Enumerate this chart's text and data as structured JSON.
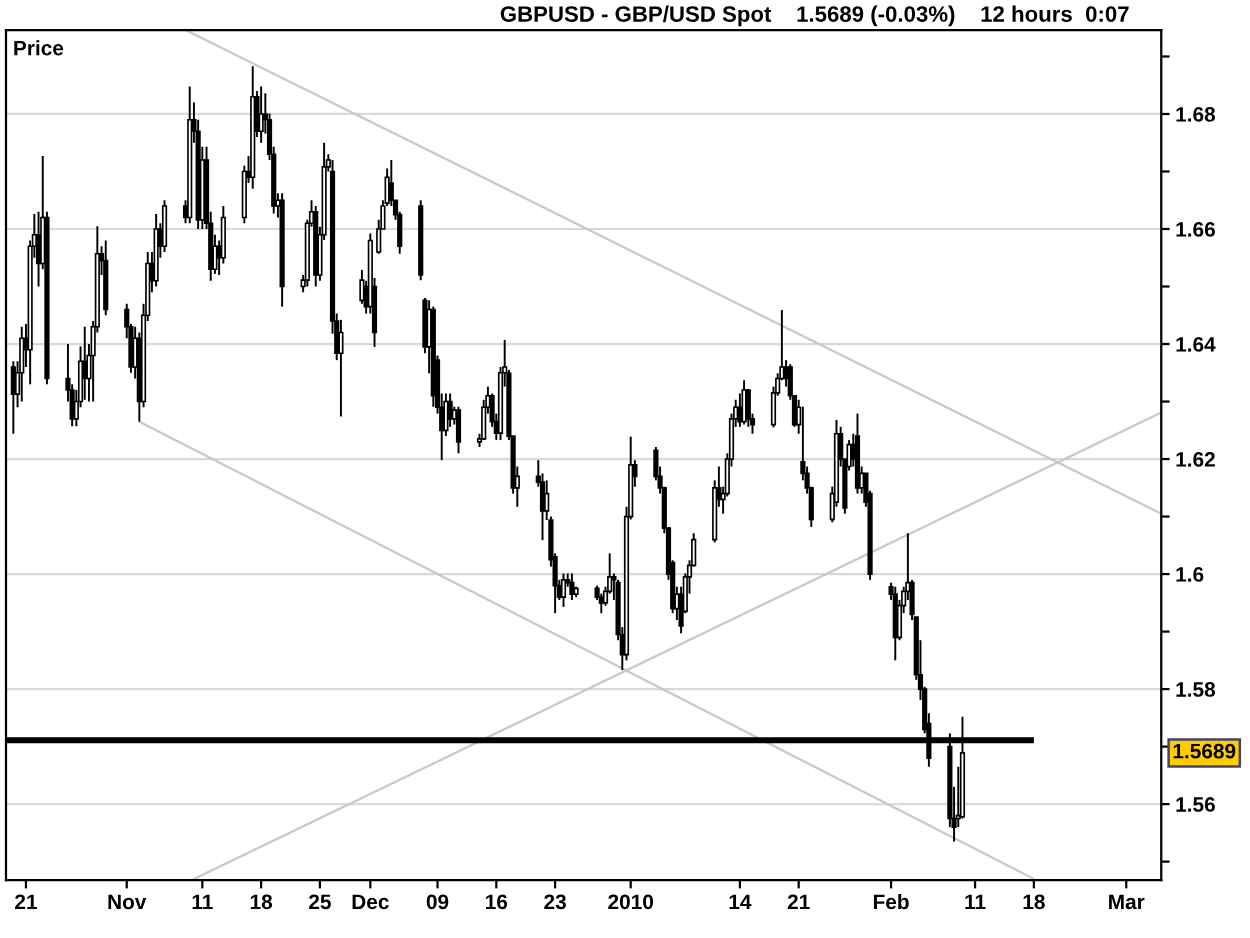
{
  "chart_data": {
    "type": "candlestick",
    "title": "GBPUSD - GBP/USD Spot    1.5689 (-0.03%)    12 hours  0:07",
    "ylabel": "Price",
    "color": "#000000",
    "x": [
      "2009-10-19T12:00",
      "2009-10-20T00:00",
      "2009-10-20T12:00",
      "2009-10-21T00:00",
      "2009-10-21T12:00",
      "2009-10-22T00:00",
      "2009-10-22T12:00",
      "2009-10-23T00:00",
      "2009-10-23T12:00",
      "2009-10-26T00:00",
      "2009-10-26T12:00",
      "2009-10-27T00:00",
      "2009-10-27T12:00",
      "2009-10-28T00:00",
      "2009-10-28T12:00",
      "2009-10-29T00:00",
      "2009-10-29T12:00",
      "2009-10-30T00:00",
      "2009-10-30T12:00",
      "2009-11-02T00:00",
      "2009-11-02T12:00",
      "2009-11-03T00:00",
      "2009-11-03T12:00",
      "2009-11-04T00:00",
      "2009-11-04T12:00",
      "2009-11-05T00:00",
      "2009-11-05T12:00",
      "2009-11-06T00:00",
      "2009-11-06T12:00",
      "2009-11-09T00:00",
      "2009-11-09T12:00",
      "2009-11-10T00:00",
      "2009-11-10T12:00",
      "2009-11-11T00:00",
      "2009-11-11T12:00",
      "2009-11-12T00:00",
      "2009-11-12T12:00",
      "2009-11-13T00:00",
      "2009-11-13T12:00",
      "2009-11-16T00:00",
      "2009-11-16T12:00",
      "2009-11-17T00:00",
      "2009-11-17T12:00",
      "2009-11-18T00:00",
      "2009-11-18T12:00",
      "2009-11-19T00:00",
      "2009-11-19T12:00",
      "2009-11-20T00:00",
      "2009-11-20T12:00",
      "2009-11-23T00:00",
      "2009-11-23T12:00",
      "2009-11-24T00:00",
      "2009-11-24T12:00",
      "2009-11-25T00:00",
      "2009-11-25T12:00",
      "2009-11-26T00:00",
      "2009-11-26T12:00",
      "2009-11-27T00:00",
      "2009-11-27T12:00",
      "2009-11-30T00:00",
      "2009-11-30T12:00",
      "2009-12-01T00:00",
      "2009-12-01T12:00",
      "2009-12-02T00:00",
      "2009-12-02T12:00",
      "2009-12-03T00:00",
      "2009-12-03T12:00",
      "2009-12-04T00:00",
      "2009-12-04T12:00",
      "2009-12-07T00:00",
      "2009-12-07T12:00",
      "2009-12-08T00:00",
      "2009-12-08T12:00",
      "2009-12-09T00:00",
      "2009-12-09T12:00",
      "2009-12-10T00:00",
      "2009-12-10T12:00",
      "2009-12-11T00:00",
      "2009-12-11T12:00",
      "2009-12-14T00:00",
      "2009-12-14T12:00",
      "2009-12-15T00:00",
      "2009-12-15T12:00",
      "2009-12-16T00:00",
      "2009-12-16T12:00",
      "2009-12-17T00:00",
      "2009-12-17T12:00",
      "2009-12-18T00:00",
      "2009-12-18T12:00",
      "2009-12-21T00:00",
      "2009-12-21T12:00",
      "2009-12-22T00:00",
      "2009-12-22T12:00",
      "2009-12-23T00:00",
      "2009-12-23T12:00",
      "2009-12-24T00:00",
      "2009-12-24T12:00",
      "2009-12-25T00:00",
      "2009-12-25T12:00",
      "2009-12-28T00:00",
      "2009-12-28T12:00",
      "2009-12-29T00:00",
      "2009-12-29T12:00",
      "2009-12-30T00:00",
      "2009-12-30T12:00",
      "2009-12-31T00:00",
      "2009-12-31T12:00",
      "2010-01-01T00:00",
      "2010-01-01T12:00",
      "2010-01-04T00:00",
      "2010-01-04T12:00",
      "2010-01-05T00:00",
      "2010-01-05T12:00",
      "2010-01-06T00:00",
      "2010-01-06T12:00",
      "2010-01-07T00:00",
      "2010-01-07T12:00",
      "2010-01-08T00:00",
      "2010-01-08T12:00",
      "2010-01-11T00:00",
      "2010-01-11T12:00",
      "2010-01-12T00:00",
      "2010-01-12T12:00",
      "2010-01-13T00:00",
      "2010-01-13T12:00",
      "2010-01-14T00:00",
      "2010-01-14T12:00",
      "2010-01-15T00:00",
      "2010-01-15T12:00",
      "2010-01-18T00:00",
      "2010-01-18T12:00",
      "2010-01-19T00:00",
      "2010-01-19T12:00",
      "2010-01-20T00:00",
      "2010-01-20T12:00",
      "2010-01-21T00:00",
      "2010-01-21T12:00",
      "2010-01-22T00:00",
      "2010-01-22T12:00",
      "2010-01-25T00:00",
      "2010-01-25T12:00",
      "2010-01-26T00:00",
      "2010-01-26T12:00",
      "2010-01-27T00:00",
      "2010-01-27T12:00",
      "2010-01-28T00:00",
      "2010-01-28T12:00",
      "2010-01-29T00:00",
      "2010-01-29T12:00",
      "2010-02-01T00:00",
      "2010-02-01T12:00",
      "2010-02-02T00:00",
      "2010-02-02T12:00",
      "2010-02-03T00:00",
      "2010-02-03T12:00",
      "2010-02-04T00:00",
      "2010-02-04T12:00",
      "2010-02-05T00:00",
      "2010-02-05T12:00",
      "2010-02-08T00:00",
      "2010-02-08T12:00",
      "2010-02-09T00:00",
      "2010-02-09T12:00"
    ],
    "ohlc": [
      [
        1.636,
        1.637,
        1.6244,
        1.6313
      ],
      [
        1.6313,
        1.637,
        1.629,
        1.635
      ],
      [
        1.635,
        1.643,
        1.63,
        1.641
      ],
      [
        1.641,
        1.6435,
        1.636,
        1.639
      ],
      [
        1.639,
        1.658,
        1.633,
        1.657
      ],
      [
        1.657,
        1.6626,
        1.655,
        1.659
      ],
      [
        1.659,
        1.663,
        1.65,
        1.654
      ],
      [
        1.654,
        1.6727,
        1.653,
        1.662
      ],
      [
        1.662,
        1.663,
        1.633,
        1.634
      ],
      [
        1.634,
        1.64,
        1.63,
        1.632
      ],
      [
        1.632,
        1.633,
        1.6257,
        1.627
      ],
      [
        1.627,
        1.632,
        1.6257,
        1.63
      ],
      [
        1.63,
        1.6396,
        1.629,
        1.637
      ],
      [
        1.637,
        1.643,
        1.6303,
        1.634
      ],
      [
        1.634,
        1.64,
        1.63,
        1.638
      ],
      [
        1.638,
        1.644,
        1.63,
        1.643
      ],
      [
        1.643,
        1.6605,
        1.642,
        1.6557
      ],
      [
        1.6557,
        1.657,
        1.652,
        1.6545
      ],
      [
        1.6545,
        1.658,
        1.645,
        1.646
      ],
      [
        1.646,
        1.647,
        1.641,
        1.643
      ],
      [
        1.643,
        1.6435,
        1.635,
        1.636
      ],
      [
        1.636,
        1.643,
        1.634,
        1.641
      ],
      [
        1.641,
        1.642,
        1.6265,
        1.63
      ],
      [
        1.63,
        1.647,
        1.629,
        1.645
      ],
      [
        1.645,
        1.656,
        1.644,
        1.654
      ],
      [
        1.654,
        1.656,
        1.649,
        1.651
      ],
      [
        1.651,
        1.6626,
        1.65,
        1.66
      ],
      [
        1.66,
        1.661,
        1.655,
        1.657
      ],
      [
        1.657,
        1.665,
        1.656,
        1.664
      ],
      [
        1.664,
        1.665,
        1.661,
        1.662
      ],
      [
        1.662,
        1.6848,
        1.661,
        1.679
      ],
      [
        1.679,
        1.682,
        1.675,
        1.677
      ],
      [
        1.677,
        1.679,
        1.66,
        1.6616
      ],
      [
        1.6616,
        1.6743,
        1.66,
        1.672
      ],
      [
        1.672,
        1.6743,
        1.66,
        1.661
      ],
      [
        1.661,
        1.663,
        1.651,
        1.653
      ],
      [
        1.653,
        1.659,
        1.6522,
        1.657
      ],
      [
        1.657,
        1.658,
        1.652,
        1.655
      ],
      [
        1.655,
        1.664,
        1.654,
        1.662
      ],
      [
        1.662,
        1.671,
        1.661,
        1.67
      ],
      [
        1.67,
        1.6727,
        1.668,
        1.669
      ],
      [
        1.669,
        1.6883,
        1.667,
        1.683
      ],
      [
        1.683,
        1.684,
        1.676,
        1.677
      ],
      [
        1.677,
        1.6848,
        1.675,
        1.68
      ],
      [
        1.68,
        1.6836,
        1.6766,
        1.679
      ],
      [
        1.679,
        1.6801,
        1.672,
        1.673
      ],
      [
        1.673,
        1.6743,
        1.6627,
        1.664
      ],
      [
        1.664,
        1.6662,
        1.662,
        1.665
      ],
      [
        1.665,
        1.6662,
        1.6465,
        1.65
      ],
      [
        1.65,
        1.652,
        1.649,
        1.6511
      ],
      [
        1.6511,
        1.6616,
        1.65,
        1.661
      ],
      [
        1.661,
        1.665,
        1.6604,
        1.663
      ],
      [
        1.663,
        1.664,
        1.65,
        1.652
      ],
      [
        1.652,
        1.6604,
        1.651,
        1.659
      ],
      [
        1.659,
        1.675,
        1.6581,
        1.6708
      ],
      [
        1.6708,
        1.673,
        1.67,
        1.672
      ],
      [
        1.67,
        1.672,
        1.6418,
        1.644
      ],
      [
        1.644,
        1.6453,
        1.6372,
        1.6384
      ],
      [
        1.6384,
        1.6442,
        1.6274,
        1.642
      ],
      [
        1.6476,
        1.6529,
        1.647,
        1.6511
      ],
      [
        1.65,
        1.651,
        1.6453,
        1.6465
      ],
      [
        1.6465,
        1.6592,
        1.6453,
        1.658
      ],
      [
        1.65,
        1.6515,
        1.6395,
        1.642
      ],
      [
        1.656,
        1.6616,
        1.6557,
        1.66
      ],
      [
        1.66,
        1.665,
        1.66,
        1.664
      ],
      [
        1.6645,
        1.6705,
        1.664,
        1.669
      ],
      [
        1.668,
        1.672,
        1.664,
        1.665
      ],
      [
        1.665,
        1.665,
        1.6616,
        1.6625
      ],
      [
        1.6625,
        1.663,
        1.6557,
        1.657
      ],
      [
        1.664,
        1.665,
        1.6511,
        1.652
      ],
      [
        1.6476,
        1.648,
        1.6384,
        1.6395
      ],
      [
        1.6395,
        1.6476,
        1.6349,
        1.646
      ],
      [
        1.646,
        1.6465,
        1.6291,
        1.631
      ],
      [
        1.6372,
        1.638,
        1.6279,
        1.629
      ],
      [
        1.629,
        1.6314,
        1.6198,
        1.625
      ],
      [
        1.625,
        1.6314,
        1.624,
        1.63
      ],
      [
        1.63,
        1.6314,
        1.6256,
        1.627
      ],
      [
        1.627,
        1.6291,
        1.626,
        1.6285
      ],
      [
        1.6285,
        1.6291,
        1.621,
        1.623
      ],
      [
        1.623,
        1.6244,
        1.6221,
        1.6235
      ],
      [
        1.6235,
        1.6303,
        1.6233,
        1.629
      ],
      [
        1.629,
        1.6326,
        1.6279,
        1.631
      ],
      [
        1.631,
        1.6314,
        1.6256,
        1.6265
      ],
      [
        1.6265,
        1.6279,
        1.6233,
        1.6245
      ],
      [
        1.6245,
        1.636,
        1.6233,
        1.635
      ],
      [
        1.635,
        1.6407,
        1.6326,
        1.636
      ],
      [
        1.6349,
        1.6355,
        1.6233,
        1.624
      ],
      [
        1.624,
        1.624,
        1.614,
        1.615
      ],
      [
        1.615,
        1.6187,
        1.6117,
        1.617
      ],
      [
        1.617,
        1.6198,
        1.6152,
        1.616
      ],
      [
        1.616,
        1.6175,
        1.6059,
        1.611
      ],
      [
        1.611,
        1.6163,
        1.6094,
        1.614
      ],
      [
        1.6094,
        1.61,
        1.6013,
        1.6025
      ],
      [
        1.603,
        1.6036,
        1.5932,
        1.598
      ],
      [
        1.598,
        1.599,
        1.5955,
        1.596
      ],
      [
        1.596,
        1.6001,
        1.5943,
        1.599
      ],
      [
        1.599,
        1.6001,
        1.5978,
        1.5985
      ],
      [
        1.5985,
        1.6001,
        1.5955,
        1.5965
      ],
      [
        1.5965,
        1.5978,
        1.596,
        1.5975
      ],
      [
        1.5975,
        1.598,
        1.5955,
        1.596
      ],
      [
        1.596,
        1.5966,
        1.5932,
        1.595
      ],
      [
        1.595,
        1.5978,
        1.5945,
        1.597
      ],
      [
        1.597,
        1.6036,
        1.5966,
        1.5995
      ],
      [
        1.5995,
        1.6001,
        1.5955,
        1.599
      ],
      [
        1.5985,
        1.599,
        1.5885,
        1.5895
      ],
      [
        1.5895,
        1.5908,
        1.5833,
        1.586
      ],
      [
        1.586,
        1.6117,
        1.585,
        1.61
      ],
      [
        1.61,
        1.6239,
        1.6095,
        1.619
      ],
      [
        1.619,
        1.6198,
        1.6152,
        1.617
      ],
      [
        1.6215,
        1.6221,
        1.6163,
        1.617
      ],
      [
        1.617,
        1.6187,
        1.614,
        1.615
      ],
      [
        1.615,
        1.6152,
        1.6071,
        1.608
      ],
      [
        1.608,
        1.6082,
        1.599,
        1.6
      ],
      [
        1.602,
        1.6024,
        1.5932,
        1.594
      ],
      [
        1.594,
        1.5978,
        1.592,
        1.5965
      ],
      [
        1.5965,
        1.5978,
        1.5897,
        1.591
      ],
      [
        1.5935,
        1.6001,
        1.5932,
        1.5995
      ],
      [
        1.5995,
        1.6024,
        1.5966,
        1.6015
      ],
      [
        1.6015,
        1.6071,
        1.6013,
        1.606
      ],
      [
        1.606,
        1.6163,
        1.6055,
        1.615
      ],
      [
        1.615,
        1.6187,
        1.6117,
        1.613
      ],
      [
        1.613,
        1.6152,
        1.6105,
        1.614
      ],
      [
        1.614,
        1.621,
        1.6135,
        1.62
      ],
      [
        1.62,
        1.6279,
        1.6187,
        1.627
      ],
      [
        1.627,
        1.6303,
        1.6256,
        1.629
      ],
      [
        1.629,
        1.6314,
        1.6256,
        1.6265
      ],
      [
        1.6265,
        1.6337,
        1.626,
        1.632
      ],
      [
        1.632,
        1.6322,
        1.6256,
        1.627
      ],
      [
        1.627,
        1.6279,
        1.6244,
        1.626
      ],
      [
        1.626,
        1.6326,
        1.6255,
        1.6315
      ],
      [
        1.6315,
        1.6349,
        1.631,
        1.634
      ],
      [
        1.634,
        1.6459,
        1.6337,
        1.636
      ],
      [
        1.636,
        1.6372,
        1.6326,
        1.634
      ],
      [
        1.636,
        1.6365,
        1.6303,
        1.631
      ],
      [
        1.631,
        1.631,
        1.6256,
        1.626
      ],
      [
        1.626,
        1.6303,
        1.6244,
        1.629
      ],
      [
        1.6195,
        1.6291,
        1.6163,
        1.6175
      ],
      [
        1.6175,
        1.6187,
        1.614,
        1.615
      ],
      [
        1.615,
        1.6152,
        1.6082,
        1.6095
      ],
      [
        1.6095,
        1.6152,
        1.609,
        1.614
      ],
      [
        1.6125,
        1.6268,
        1.6117,
        1.6244
      ],
      [
        1.6244,
        1.6256,
        1.6187,
        1.62
      ],
      [
        1.62,
        1.62,
        1.6105,
        1.6115
      ],
      [
        1.6187,
        1.6233,
        1.618,
        1.6225
      ],
      [
        1.6225,
        1.6244,
        1.6187,
        1.62
      ],
      [
        1.624,
        1.6279,
        1.614,
        1.615
      ],
      [
        1.615,
        1.6187,
        1.614,
        1.6175
      ],
      [
        1.6175,
        1.6175,
        1.6117,
        1.6125
      ],
      [
        1.614,
        1.6145,
        1.599,
        1.6
      ],
      [
        1.5978,
        1.5985,
        1.5955,
        1.5965
      ],
      [
        1.5965,
        1.5978,
        1.585,
        1.589
      ],
      [
        1.589,
        1.5955,
        1.5885,
        1.5945
      ],
      [
        1.5945,
        1.5978,
        1.5932,
        1.597
      ],
      [
        1.597,
        1.6071,
        1.5955,
        1.5985
      ],
      [
        1.5985,
        1.599,
        1.592,
        1.593
      ],
      [
        1.5925,
        1.5925,
        1.5816,
        1.5825
      ],
      [
        1.5825,
        1.5885,
        1.5781,
        1.58
      ],
      [
        1.58,
        1.5804,
        1.5723,
        1.573
      ],
      [
        1.574,
        1.5758,
        1.5665,
        1.568
      ],
      [
        1.57,
        1.5723,
        1.556,
        1.5575
      ],
      [
        1.5575,
        1.563,
        1.5535,
        1.556
      ],
      [
        1.5575,
        1.5665,
        1.556,
        1.558
      ],
      [
        1.5578,
        1.5752,
        1.5575,
        1.5689
      ]
    ],
    "series": [
      {
        "type": "line",
        "color": "#c8c8c8",
        "x": [
          "2009-11-09T00:00",
          "2010-03-05T04:00"
        ],
        "values": [
          1.6946,
          1.6105
        ]
      },
      {
        "type": "line",
        "color": "#c8c8c8",
        "x": [
          "2009-11-03T12:00",
          "2010-02-18T00:00"
        ],
        "values": [
          1.6265,
          1.547
        ]
      },
      {
        "type": "line",
        "color": "#c8c8c8",
        "x": [
          "2009-11-09T18:00",
          "2010-03-05T04:00"
        ],
        "values": [
          1.5468,
          1.6281
        ]
      },
      {
        "type": "line",
        "color": "#000000",
        "x": [
          "2009-10-18T15:00",
          "2010-02-18T00:00"
        ],
        "values": [
          1.5711,
          1.5711
        ]
      }
    ],
    "xlim": [
      "2009-10-18T15:00",
      "2010-03-05T04:00"
    ],
    "ylim": [
      1.5468,
      1.6946
    ],
    "xticks": [
      {
        "value": "2009-10-21",
        "label": "21"
      },
      {
        "value": "2009-11-02",
        "label": "Nov"
      },
      {
        "value": "2009-11-11",
        "label": "11"
      },
      {
        "value": "2009-11-18",
        "label": "18"
      },
      {
        "value": "2009-11-25",
        "label": "25"
      },
      {
        "value": "2009-12-01",
        "label": "Dec"
      },
      {
        "value": "2009-12-09",
        "label": "09"
      },
      {
        "value": "2009-12-16",
        "label": "16"
      },
      {
        "value": "2009-12-23",
        "label": "23"
      },
      {
        "value": "2010-01-01",
        "label": "2010"
      },
      {
        "value": "2010-01-14",
        "label": "14"
      },
      {
        "value": "2010-01-21",
        "label": "21"
      },
      {
        "value": "2010-02-01",
        "label": "Feb"
      },
      {
        "value": "2010-02-11",
        "label": "11"
      },
      {
        "value": "2010-02-18",
        "label": "18"
      },
      {
        "value": "2010-03-01",
        "label": "Mar"
      }
    ],
    "yticks": [
      {
        "value": 1.55,
        "label": null
      },
      1.56,
      {
        "value": 1.57,
        "label": null
      },
      1.58,
      {
        "value": 1.59,
        "label": null
      },
      1.6,
      {
        "value": 1.61,
        "label": null
      },
      1.62,
      {
        "value": 1.63,
        "label": null
      },
      1.64,
      {
        "value": 1.65,
        "label": null
      },
      1.66,
      {
        "value": 1.67,
        "label": null
      },
      1.68,
      {
        "value": 1.69,
        "label": null
      }
    ],
    "grid": "y",
    "annotations": [
      "1.5689"
    ]
  }
}
